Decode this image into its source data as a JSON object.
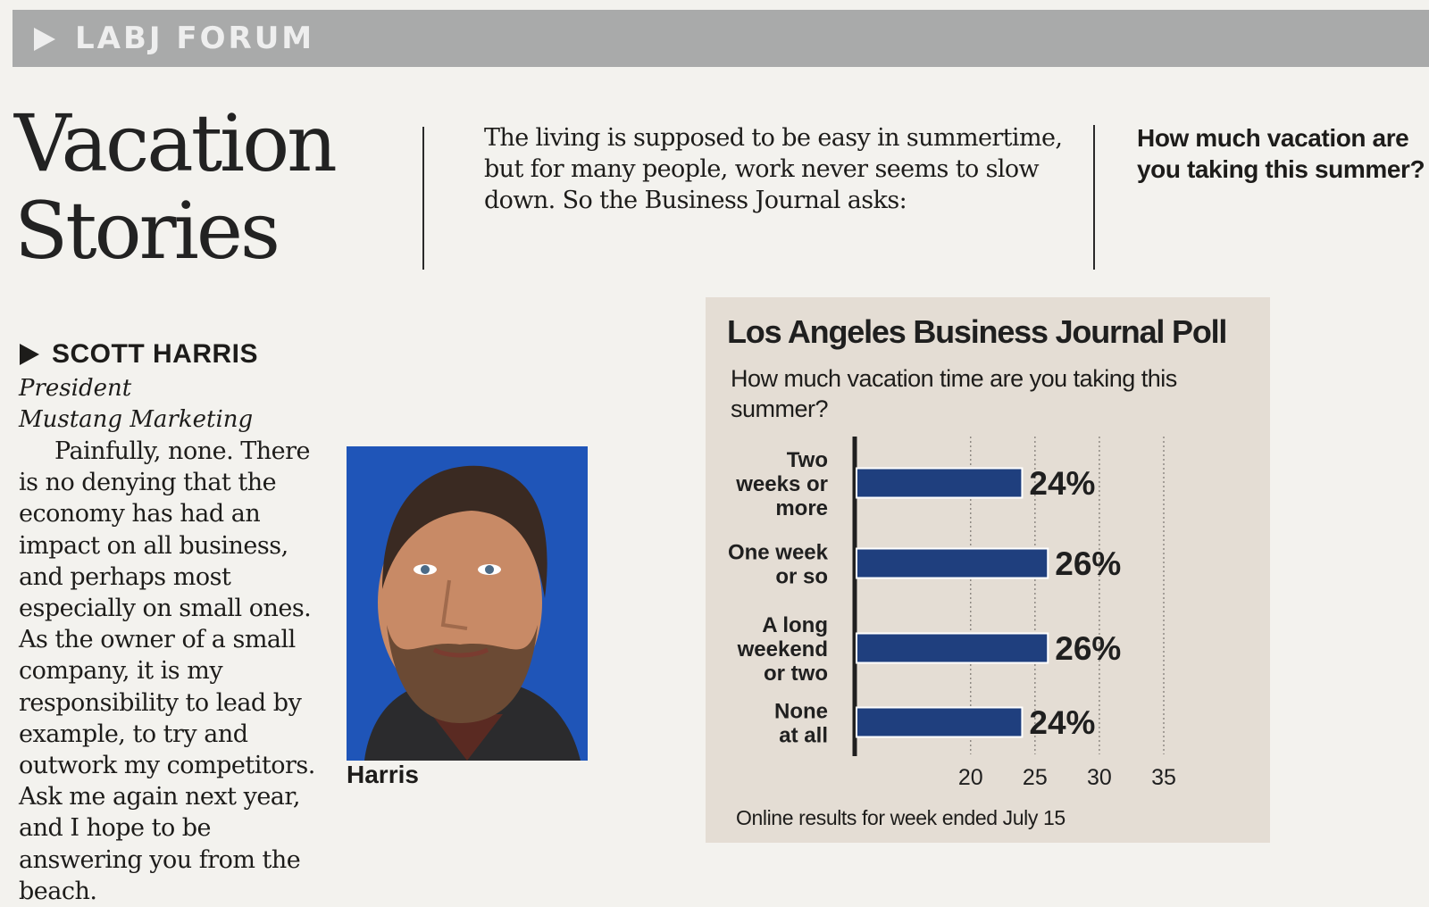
{
  "section": {
    "label": "LABJ FORUM"
  },
  "headline": {
    "line1": "Vacation",
    "line2": "Stories"
  },
  "intro": "The living is supposed to be easy in summertime, but for many people, work never seems to slow down. So the Business Journal asks:",
  "question": "How much vacation are you taking this summer?",
  "respondent": {
    "name": "SCOTT HARRIS",
    "title": "President",
    "company": "Mustang Marketing",
    "answer": "Painfully, none. There is no denying that the economy has had an impact on all business, and perhaps most especially on small ones. As the owner of a small company, it is my responsibility to lead by example, to try and outwork my competitors. Ask me again next year, and I hope to be answering you from the beach.",
    "photo_caption": "Harris"
  },
  "colors": {
    "bar": "#1f3f7e",
    "banner": "#a9aaaa",
    "poll_bg": "#e4ddd4",
    "photo_bg": "#1d4fb0"
  },
  "chart_data": {
    "type": "bar",
    "orientation": "horizontal",
    "title": "Los Angeles Business Journal Poll",
    "subtitle": "How much vacation time are you taking this summer?",
    "categories": [
      [
        "Two",
        "weeks or",
        "more"
      ],
      [
        "One week",
        "or so"
      ],
      [
        "A long",
        "weekend",
        "or two"
      ],
      [
        "None",
        "at all"
      ]
    ],
    "values": [
      24,
      26,
      26,
      24
    ],
    "value_labels": [
      "24%",
      "26%",
      "26%",
      "24%"
    ],
    "xlim": [
      11,
      35
    ],
    "xticks": [
      20,
      25,
      30,
      35
    ],
    "footnote": "Online results for week ended July 15"
  }
}
